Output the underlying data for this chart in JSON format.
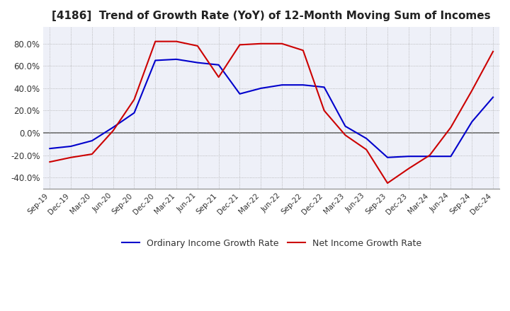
{
  "title": "[4186]  Trend of Growth Rate (YoY) of 12-Month Moving Sum of Incomes",
  "title_fontsize": 11,
  "ylim": [
    -50,
    95
  ],
  "yticks": [
    -40.0,
    -20.0,
    0.0,
    20.0,
    40.0,
    60.0,
    80.0
  ],
  "ytick_labels": [
    "-40.0%",
    "-20.0%",
    "0.0%",
    "20.0%",
    "40.0%",
    "60.0%",
    "80.0%"
  ],
  "x_labels": [
    "Sep-19",
    "Dec-19",
    "Mar-20",
    "Jun-20",
    "Sep-20",
    "Dec-20",
    "Mar-21",
    "Jun-21",
    "Sep-21",
    "Dec-21",
    "Mar-22",
    "Jun-22",
    "Sep-22",
    "Dec-22",
    "Mar-23",
    "Jun-23",
    "Sep-23",
    "Dec-23",
    "Mar-24",
    "Jun-24",
    "Sep-24",
    "Dec-24"
  ],
  "ordinary_income": [
    -14,
    -12,
    -7,
    5,
    18,
    65,
    66,
    63,
    61,
    35,
    40,
    43,
    43,
    41,
    6,
    -5,
    -22,
    -21,
    -21,
    -21,
    10,
    32
  ],
  "net_income": [
    -26,
    -22,
    -19,
    2,
    30,
    82,
    82,
    78,
    50,
    79,
    80,
    80,
    74,
    20,
    -2,
    -15,
    -45,
    -32,
    -20,
    5,
    38,
    73
  ],
  "ordinary_color": "#0000cc",
  "net_color": "#cc0000",
  "line_width": 1.5,
  "legend_ordinary": "Ordinary Income Growth Rate",
  "legend_net": "Net Income Growth Rate",
  "background_color": "#eef0f8",
  "plot_bg_color": "#eef0f8",
  "grid_color": "#aaaaaa",
  "zero_line_color": "#666666"
}
